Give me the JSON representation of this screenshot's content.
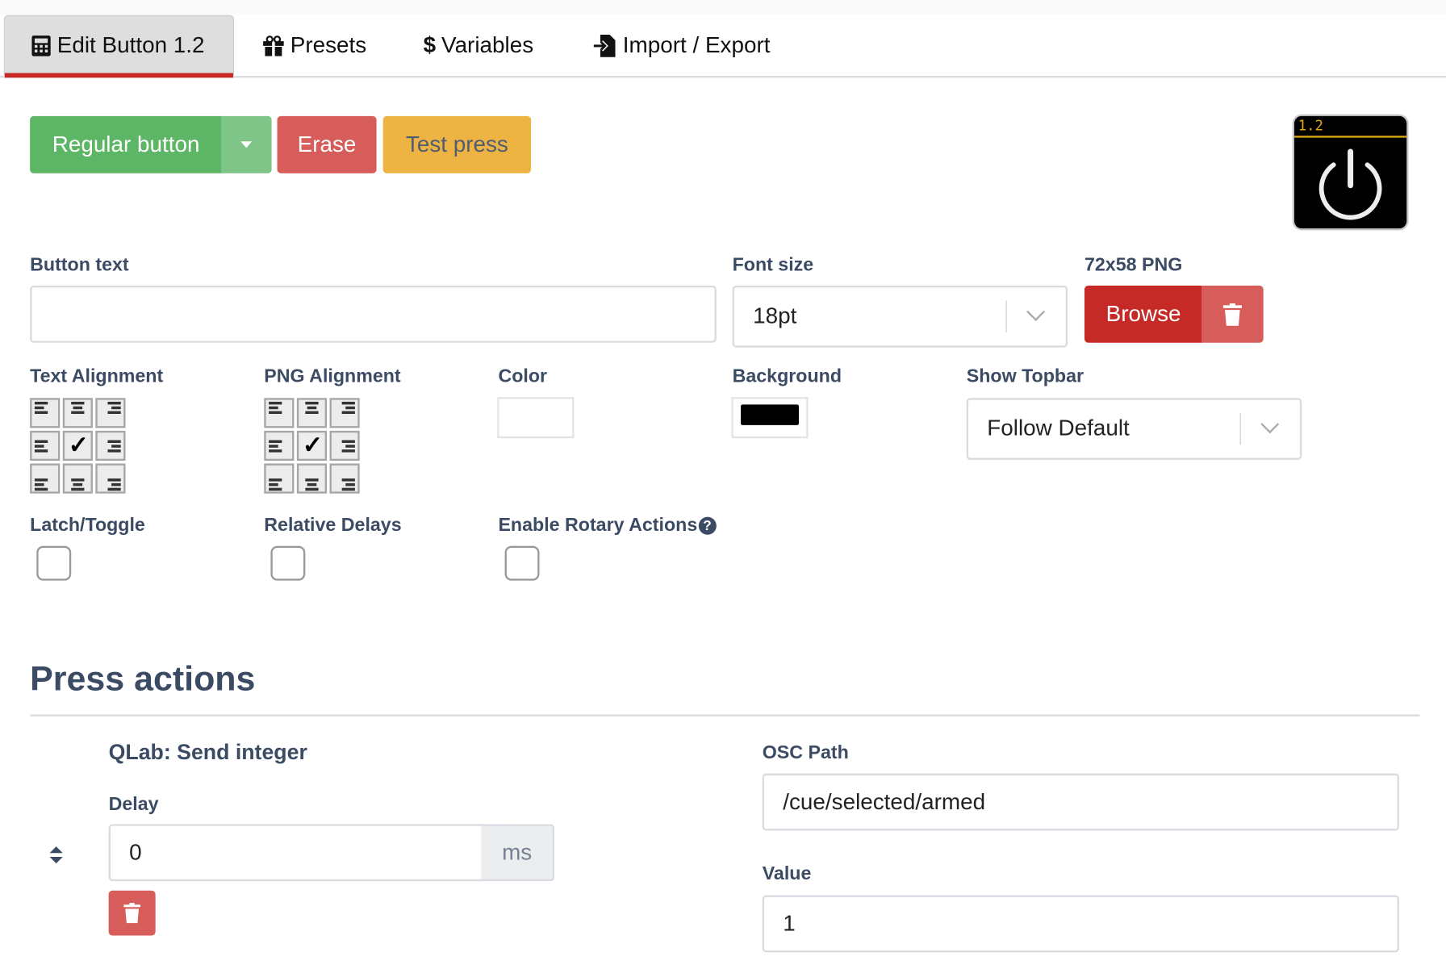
{
  "tabs": [
    {
      "label": "Edit Button 1.2",
      "icon": "calculator-icon",
      "active": true
    },
    {
      "label": "Presets",
      "icon": "gift-icon",
      "active": false
    },
    {
      "label": "Variables",
      "icon": "dollar-icon",
      "active": false
    },
    {
      "label": "Import / Export",
      "icon": "file-import-icon",
      "active": false
    }
  ],
  "toolbar": {
    "type_label": "Regular button",
    "erase_label": "Erase",
    "test_label": "Test press"
  },
  "preview": {
    "page_label": "1.2",
    "icon": "power-icon",
    "topbar_color": "#e0a818"
  },
  "fields": {
    "button_text": {
      "label": "Button text",
      "value": ""
    },
    "font_size": {
      "label": "Font size",
      "value": "18pt"
    },
    "png": {
      "label": "72x58 PNG",
      "browse_label": "Browse"
    },
    "text_alignment": {
      "label": "Text Alignment",
      "selected": "center-center"
    },
    "png_alignment": {
      "label": "PNG Alignment",
      "selected": "center-center"
    },
    "color": {
      "label": "Color",
      "value": "#ffffff"
    },
    "background": {
      "label": "Background",
      "value": "#000000"
    },
    "show_topbar": {
      "label": "Show Topbar",
      "value": "Follow Default"
    },
    "latch": {
      "label": "Latch/Toggle",
      "checked": false
    },
    "relative_delays": {
      "label": "Relative Delays",
      "checked": false
    },
    "rotary": {
      "label": "Enable Rotary Actions",
      "checked": false
    }
  },
  "press_actions": {
    "title": "Press actions",
    "action": {
      "name": "QLab: Send integer",
      "delay_label": "Delay",
      "delay_value": "0",
      "delay_unit": "ms",
      "osc_label": "OSC Path",
      "osc_value": "/cue/selected/armed",
      "value_label": "Value",
      "value_value": "1"
    }
  },
  "colors": {
    "green": "#5cb666",
    "red": "#d65d59",
    "yellow": "#eeb443",
    "accent": "#c62a26"
  }
}
